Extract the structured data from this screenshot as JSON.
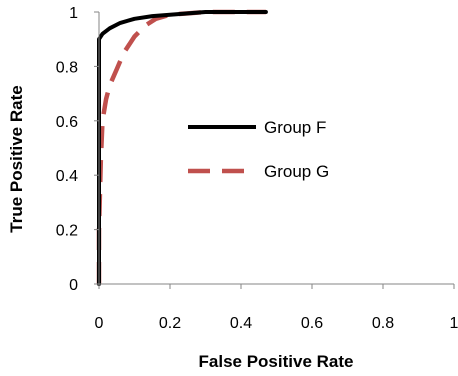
{
  "chart_data": {
    "type": "line",
    "title": "",
    "xlabel": "False Positive Rate",
    "ylabel": "True Positive Rate",
    "xlim": [
      0,
      1
    ],
    "ylim": [
      0,
      1
    ],
    "x_ticks": [
      "0",
      "0.2",
      "0.4",
      "0.6",
      "0.8",
      "1"
    ],
    "y_ticks": [
      "0",
      "0.2",
      "0.4",
      "0.6",
      "0.8",
      "1"
    ],
    "grid": false,
    "legend_position": "center",
    "series": [
      {
        "name": "Group F",
        "color": "#000000",
        "style": "solid",
        "x": [
          0,
          0,
          0.01,
          0.03,
          0.06,
          0.1,
          0.15,
          0.2,
          0.25,
          0.3,
          0.35,
          0.4,
          0.45,
          0.47
        ],
        "y": [
          0,
          0.9,
          0.92,
          0.94,
          0.96,
          0.975,
          0.985,
          0.99,
          0.995,
          1.0,
          1.0,
          1.0,
          1.0,
          1.0
        ]
      },
      {
        "name": "Group G",
        "color": "#c0504d",
        "style": "dashed",
        "x": [
          0,
          0,
          0.005,
          0.01,
          0.02,
          0.03,
          0.05,
          0.07,
          0.1,
          0.13,
          0.16,
          0.2,
          0.25,
          0.3,
          0.35,
          0.4,
          0.45,
          0.47
        ],
        "y": [
          0,
          0.2,
          0.45,
          0.6,
          0.68,
          0.73,
          0.79,
          0.85,
          0.91,
          0.95,
          0.975,
          0.99,
          0.995,
          1.0,
          1.0,
          1.0,
          1.0,
          1.0
        ]
      }
    ]
  }
}
